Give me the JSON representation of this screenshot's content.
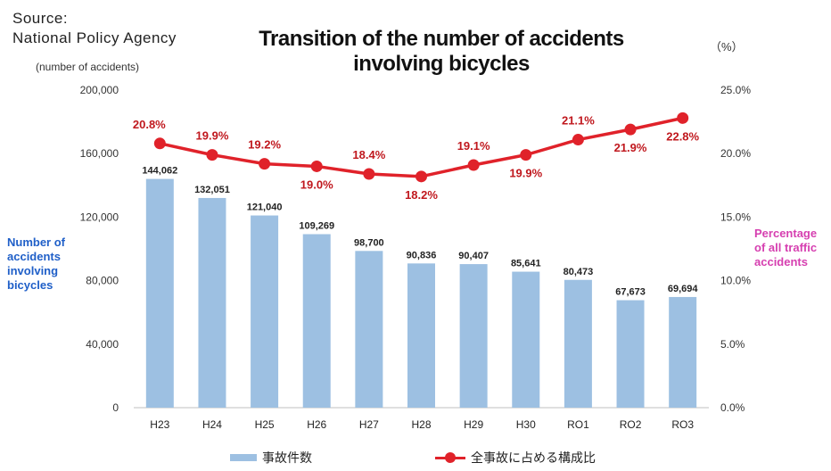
{
  "source": {
    "line1": "Source:",
    "line2": "National Policy Agency"
  },
  "title": {
    "line1": "Transition of the number of accidents",
    "line2": "involving bicycles"
  },
  "axis_units": {
    "left": "(number of accidents)",
    "right": "（%）"
  },
  "captions": {
    "left": [
      "Number of",
      "accidents",
      "involving",
      "bicycles"
    ],
    "right": [
      "Percentage",
      "of all traffic",
      "accidents"
    ]
  },
  "legend": {
    "bars": "事故件数",
    "line": "全事故に占める構成比"
  },
  "colors": {
    "bar": "#9dc0e2",
    "line": "#e0222a",
    "line_label": "#c0181e",
    "left_caption": "#1f5fc8",
    "right_caption": "#d63fb0"
  },
  "chart_data": {
    "type": "bar",
    "categories": [
      "H23",
      "H24",
      "H25",
      "H26",
      "H27",
      "H28",
      "H29",
      "H30",
      "RO1",
      "RO2",
      "RO3"
    ],
    "series": [
      {
        "type": "bar",
        "axis": "left",
        "values": [
          144062,
          132051,
          121040,
          109269,
          98700,
          90836,
          90407,
          85641,
          80473,
          67673,
          69694
        ],
        "labels": [
          "144,062",
          "132,051",
          "121,040",
          "109,269",
          "98,700",
          "90,836",
          "90,407",
          "85,641",
          "80,473",
          "67,673",
          "69,694"
        ]
      },
      {
        "type": "line",
        "axis": "right",
        "values": [
          20.8,
          19.9,
          19.2,
          19.0,
          18.4,
          18.2,
          19.1,
          19.9,
          21.1,
          21.9,
          22.8
        ],
        "labels": [
          "20.8%",
          "19.9%",
          "19.2%",
          "19.0%",
          "18.4%",
          "18.2%",
          "19.1%",
          "19.9%",
          "21.1%",
          "21.9%",
          "22.8%"
        ]
      }
    ],
    "left_axis": {
      "ylim": [
        0,
        200000
      ],
      "ticks": [
        0,
        40000,
        80000,
        120000,
        160000,
        200000
      ],
      "tick_labels": [
        "0",
        "40,000",
        "80,000",
        "120,000",
        "160,000",
        "200,000"
      ]
    },
    "right_axis": {
      "ylim": [
        0,
        25
      ],
      "ticks": [
        0,
        5,
        10,
        15,
        20,
        25
      ],
      "tick_labels": [
        "0.0%",
        "5.0%",
        "10.0%",
        "15.0%",
        "20.0%",
        "25.0%"
      ]
    },
    "grid": false,
    "legend_position": "bottom"
  }
}
